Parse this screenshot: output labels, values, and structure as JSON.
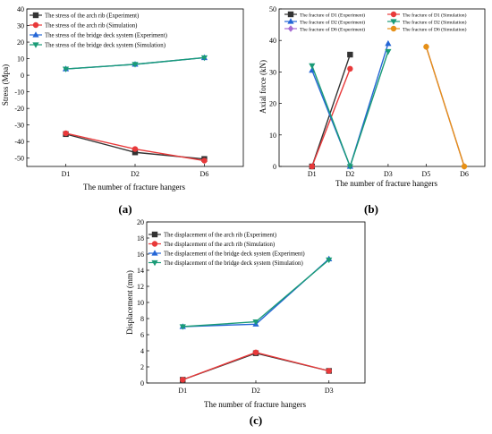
{
  "chart_data": [
    {
      "id": "a",
      "type": "line",
      "caption": "(a)",
      "title": "",
      "xlabel": "The number of fracture hangers",
      "ylabel": "Stress (Mpa)",
      "categories": [
        "D1",
        "D2",
        "D6"
      ],
      "ylim": [
        -55,
        40
      ],
      "yticks": [
        -50,
        -40,
        -30,
        -20,
        -10,
        0,
        10,
        20,
        30,
        40
      ],
      "grid": false,
      "legend": "top-left",
      "series": [
        {
          "name": "The stress of the arch rib (Experiment)",
          "color": "#333333",
          "marker": "square",
          "values": [
            -35.5,
            -46.5,
            -50.5
          ]
        },
        {
          "name": "The stress of the arch rib (Simulation)",
          "color": "#e8393a",
          "marker": "circle",
          "values": [
            -35,
            -44.5,
            -51.5
          ]
        },
        {
          "name": "The stress of the bridge deck system (Experiment)",
          "color": "#2466d6",
          "marker": "triangle-up",
          "values": [
            3.8,
            6.6,
            10.6
          ]
        },
        {
          "name": "The stress of the bridge deck system (Simulation)",
          "color": "#1a9b77",
          "marker": "triangle-down",
          "values": [
            3.8,
            6.6,
            10.6
          ]
        }
      ]
    },
    {
      "id": "b",
      "type": "line",
      "caption": "(b)",
      "title": "",
      "xlabel": "The number of fracture hangers",
      "ylabel": "Axial force (kN)",
      "categories": [
        "D1",
        "D2",
        "D3",
        "D5",
        "D6"
      ],
      "ylim": [
        0,
        50
      ],
      "yticks": [
        0,
        10,
        20,
        30,
        40,
        50
      ],
      "grid": false,
      "legend": "top",
      "series": [
        {
          "name": "The fracture of D1 (Experiment)",
          "color": "#333333",
          "marker": "square",
          "values": [
            0,
            35.5,
            null,
            null,
            null
          ]
        },
        {
          "name": "The fracture of D1 (Simulation)",
          "color": "#e8393a",
          "marker": "circle",
          "values": [
            0,
            31,
            null,
            null,
            null
          ]
        },
        {
          "name": "The fracture of D2 (Experiment)",
          "color": "#2466d6",
          "marker": "triangle-up",
          "values": [
            30.5,
            0,
            39,
            null,
            null
          ]
        },
        {
          "name": "The fracture of D2 (Simulation)",
          "color": "#1a9b77",
          "marker": "triangle-down",
          "values": [
            32,
            0,
            36.5,
            null,
            null
          ]
        },
        {
          "name": "The fracture of D6 (Experiment)",
          "color": "#a66bd3",
          "marker": "diamond",
          "values": [
            null,
            null,
            null,
            38,
            0
          ]
        },
        {
          "name": "The fracture of D6 (Simulation)",
          "color": "#e69016",
          "marker": "circle",
          "values": [
            null,
            null,
            null,
            38,
            0
          ]
        }
      ]
    },
    {
      "id": "c",
      "type": "line",
      "caption": "(c)",
      "title": "",
      "xlabel": "The number of fracture hangers",
      "ylabel": "Displacement (mm)",
      "categories": [
        "D1",
        "D2",
        "D3"
      ],
      "ylim": [
        0,
        20
      ],
      "yticks": [
        0,
        2,
        4,
        6,
        8,
        10,
        12,
        14,
        16,
        18,
        20
      ],
      "grid": false,
      "legend": "top-left",
      "series": [
        {
          "name": "The displacement of the arch rib (Experiment)",
          "color": "#333333",
          "marker": "square",
          "values": [
            0.4,
            3.7,
            1.5
          ]
        },
        {
          "name": "The displacement of the arch rib (Simulation)",
          "color": "#e8393a",
          "marker": "circle",
          "values": [
            0.4,
            3.8,
            1.5
          ]
        },
        {
          "name": "The displacement of the bridge deck system (Experiment)",
          "color": "#2466d6",
          "marker": "triangle-up",
          "values": [
            7.0,
            7.3,
            15.4
          ]
        },
        {
          "name": "The displacement of the bridge deck system (Simulation)",
          "color": "#1a9b77",
          "marker": "triangle-down",
          "values": [
            7.0,
            7.6,
            15.3
          ]
        }
      ]
    }
  ]
}
